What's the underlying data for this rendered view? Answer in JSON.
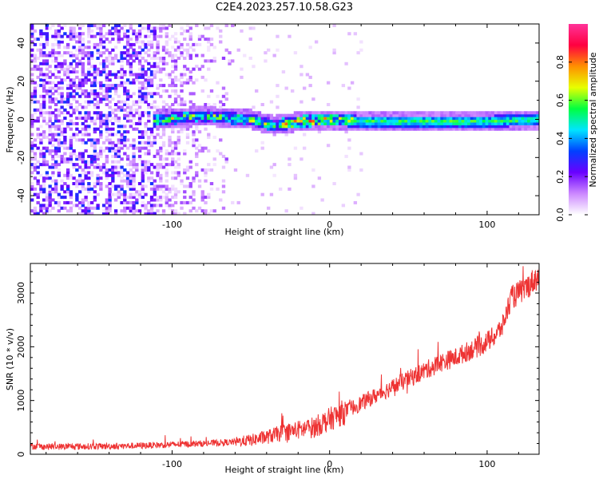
{
  "title": "C2E4.2023.257.10.58.G23",
  "chart_data": [
    {
      "type": "heatmap",
      "xlabel": "Height of straight line (km)",
      "ylabel": "Frequency (Hz)",
      "xlim": [
        -190,
        133
      ],
      "ylim": [
        -50,
        50
      ],
      "xticks": [
        -100,
        0,
        100
      ],
      "yticks": [
        -40,
        -20,
        0,
        20,
        40
      ],
      "colorbar": {
        "label": "Normalized spectral amplitude",
        "range": [
          0,
          1
        ],
        "ticks": [
          "0.0",
          "0.2",
          "0.4",
          "0.6",
          "0.8"
        ],
        "tick_values": [
          0,
          0.2,
          0.4,
          0.6,
          0.8
        ],
        "colormap": [
          "#ffffff",
          "#cc88ff",
          "#6a00ff",
          "#0040ff",
          "#00e5ff",
          "#00ff40",
          "#e8ff00",
          "#ff9000",
          "#ff0040",
          "#ff3399"
        ]
      },
      "signal_band": {
        "center_hz": [
          [
            -110,
            0
          ],
          [
            -80,
            2
          ],
          [
            -50,
            0
          ],
          [
            -35,
            -3
          ],
          [
            -20,
            -1
          ],
          [
            0,
            0
          ],
          [
            20,
            -1
          ],
          [
            60,
            -1
          ],
          [
            100,
            -1
          ],
          [
            133,
            0
          ]
        ],
        "width_hz": 6
      },
      "noise_region_x": [
        -190,
        -60
      ]
    },
    {
      "type": "line",
      "xlabel": "Height of straight line (km)",
      "ylabel": "SNR (10 * v/v)",
      "xlim": [
        -190,
        133
      ],
      "ylim": [
        0,
        3550
      ],
      "xticks": [
        -100,
        0,
        100
      ],
      "yticks": [
        0,
        1000,
        2000,
        3000
      ],
      "color": "#ee3333",
      "series": [
        {
          "x": [
            -190,
            -180,
            -160,
            -140,
            -120,
            -100,
            -80,
            -60,
            -50,
            -40,
            -30,
            -20,
            -10,
            0,
            10,
            20,
            30,
            40,
            50,
            60,
            70,
            80,
            90,
            95,
            100,
            105,
            110,
            115,
            120,
            125,
            130,
            133
          ],
          "y": [
            150,
            140,
            145,
            150,
            160,
            180,
            200,
            230,
            260,
            320,
            400,
            450,
            500,
            650,
            800,
            950,
            1100,
            1250,
            1400,
            1550,
            1700,
            1800,
            1950,
            2000,
            2100,
            2200,
            2400,
            2900,
            3000,
            3100,
            3250,
            3300
          ]
        }
      ]
    }
  ]
}
